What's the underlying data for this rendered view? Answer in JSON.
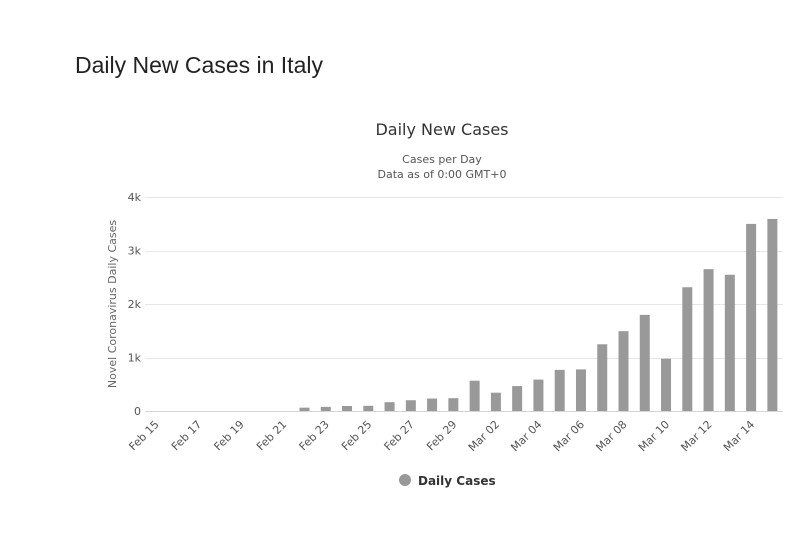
{
  "page": {
    "heading": "Daily New Cases in Italy"
  },
  "chart_data": {
    "type": "bar",
    "title": "Daily New Cases",
    "subtitle_lines": [
      "Cases per Day",
      "Data as of 0:00 GMT+0"
    ],
    "ylabel": "Novel Coronavirus Daily Cases",
    "xlabel": "",
    "ylim": [
      0,
      4000
    ],
    "yticks": [
      0,
      1000,
      2000,
      3000,
      4000
    ],
    "ytick_labels": [
      "0",
      "1k",
      "2k",
      "3k",
      "4k"
    ],
    "categories": [
      "Feb 15",
      "Feb 16",
      "Feb 17",
      "Feb 18",
      "Feb 19",
      "Feb 20",
      "Feb 21",
      "Feb 22",
      "Feb 23",
      "Feb 24",
      "Feb 25",
      "Feb 26",
      "Feb 27",
      "Feb 28",
      "Feb 29",
      "Mar 01",
      "Mar 02",
      "Mar 03",
      "Mar 04",
      "Mar 05",
      "Mar 06",
      "Mar 07",
      "Mar 08",
      "Mar 09",
      "Mar 10",
      "Mar 11",
      "Mar 12",
      "Mar 13",
      "Mar 14",
      "Mar 15"
    ],
    "xtick_labels": [
      "Feb 15",
      "Feb 17",
      "Feb 19",
      "Feb 21",
      "Feb 23",
      "Feb 25",
      "Feb 27",
      "Feb 29",
      "Mar 02",
      "Mar 04",
      "Mar 06",
      "Mar 08",
      "Mar 10",
      "Mar 12",
      "Mar 14"
    ],
    "series": [
      {
        "name": "Daily Cases",
        "color": "#999999",
        "values": [
          0,
          0,
          0,
          0,
          0,
          0,
          0,
          62,
          77,
          93,
          97,
          165,
          201,
          233,
          240,
          566,
          342,
          466,
          587,
          769,
          778,
          1247,
          1492,
          1797,
          977,
          2313,
          2651,
          2547,
          3497,
          3590
        ]
      }
    ],
    "grid": true,
    "legend_position": "bottom-center"
  }
}
